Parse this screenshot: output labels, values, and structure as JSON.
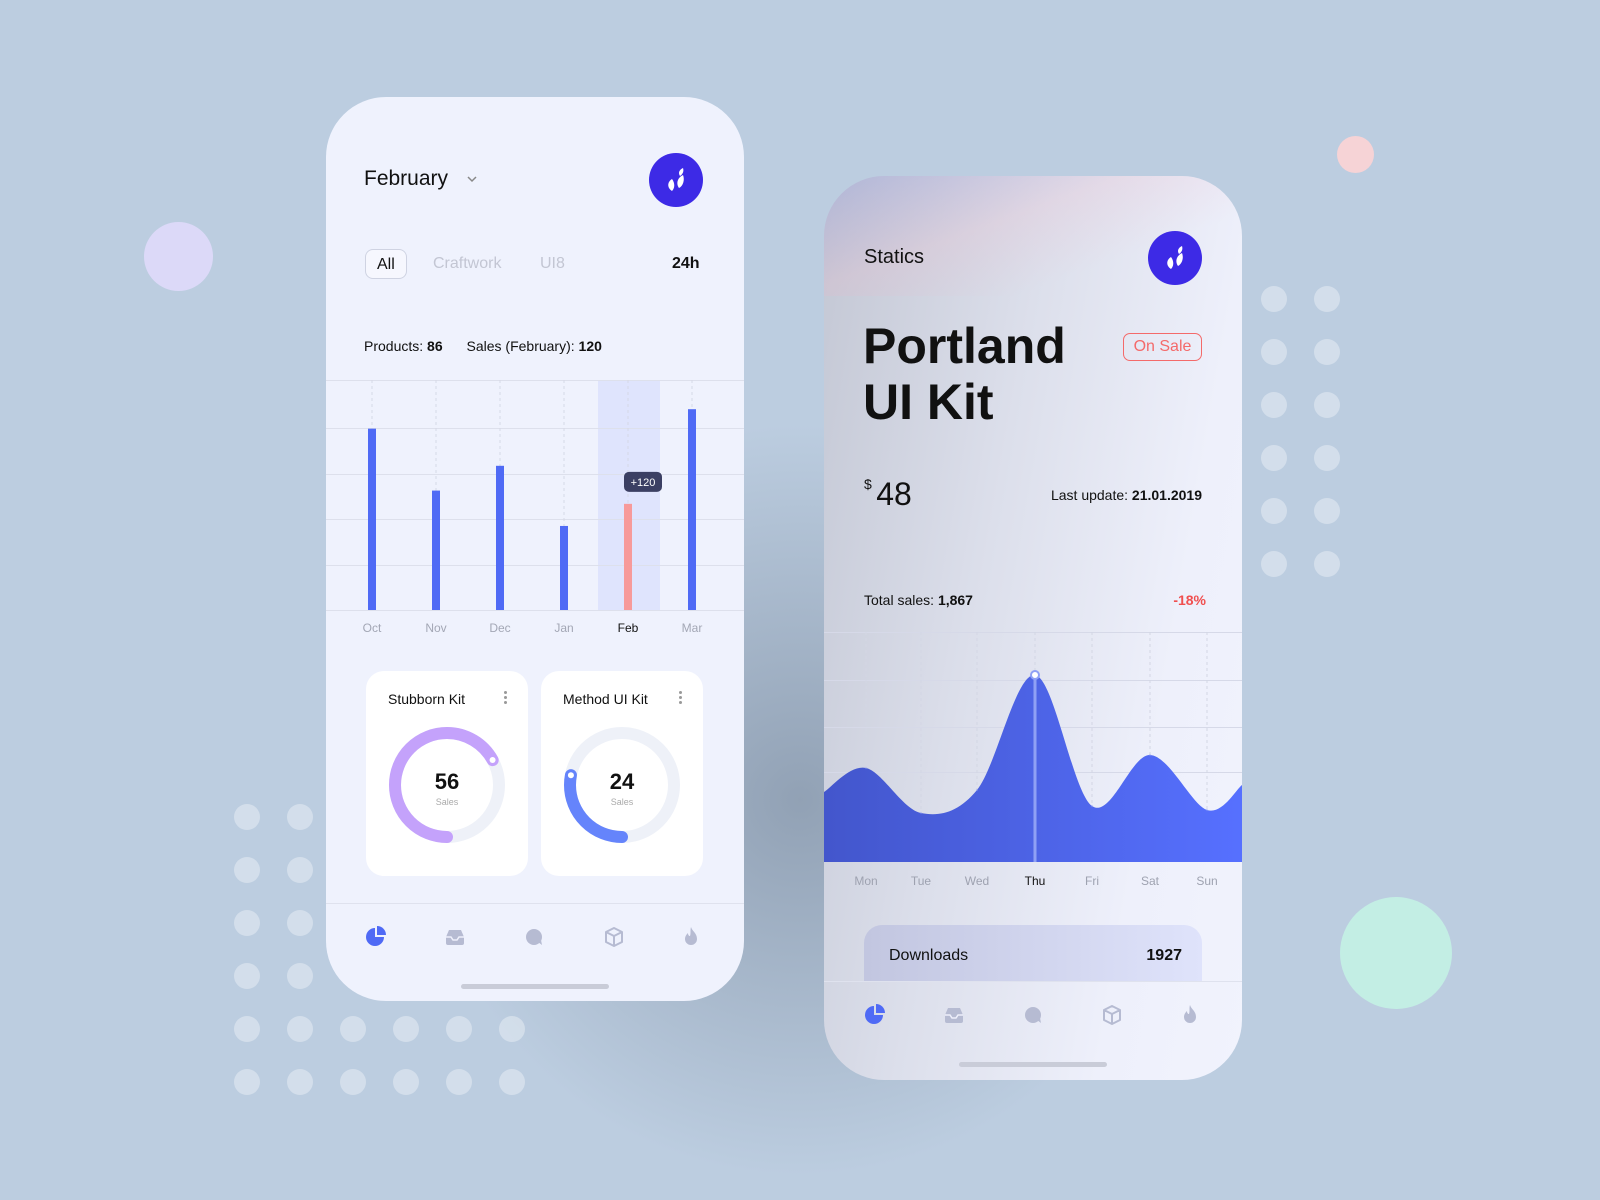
{
  "left_screen": {
    "month": "February",
    "tabs": [
      {
        "label": "All",
        "active": true
      },
      {
        "label": "Craftwork",
        "active": false
      },
      {
        "label": "UI8",
        "active": false
      }
    ],
    "period": "24h",
    "products_label": "Products:",
    "products_value": "86",
    "sales_label": "Sales (February):",
    "sales_value": "120",
    "tooltip": "+120",
    "cards": [
      {
        "title": "Stubborn Kit",
        "value": "56",
        "unit": "Sales",
        "progress": 0.67,
        "color": "#c4a2fb"
      },
      {
        "title": "Method UI Kit",
        "value": "24",
        "unit": "Sales",
        "progress": 0.28,
        "color": "#6584fb"
      }
    ],
    "nav": [
      "pie-chart-icon",
      "inbox-icon",
      "chat-icon",
      "box-icon",
      "flame-icon"
    ]
  },
  "right_screen": {
    "header": "Statics",
    "title_line1": "Portland",
    "title_line2": "UI Kit",
    "badge": "On Sale",
    "currency": "$",
    "price": "48",
    "last_update_label": "Last update:",
    "last_update_value": "21.01.2019",
    "total_sales_label": "Total sales:",
    "total_sales_value": "1,867",
    "change": "-18%",
    "downloads_label": "Downloads",
    "downloads_value": "1927",
    "nav": [
      "pie-chart-icon",
      "inbox-icon",
      "chat-icon",
      "box-icon",
      "flame-icon"
    ]
  },
  "colors": {
    "accent": "#4f6af5",
    "logo": "#3d2ae6",
    "highlight_bar": "#f79a9a",
    "negative": "#f04f4f",
    "badge": "#f46a6a"
  },
  "chart_data": [
    {
      "type": "bar",
      "categories": [
        "Oct",
        "Nov",
        "Dec",
        "Jan",
        "Feb",
        "Mar"
      ],
      "values": [
        205,
        135,
        163,
        95,
        120,
        227
      ],
      "highlighted": "Feb",
      "grid": true
    },
    {
      "type": "area",
      "categories": [
        "Mon",
        "Tue",
        "Wed",
        "Thu",
        "Fri",
        "Sat",
        "Sun"
      ],
      "values": [
        94,
        49,
        72,
        187,
        56,
        107,
        52
      ],
      "highlighted": "Thu",
      "grid": true
    }
  ]
}
